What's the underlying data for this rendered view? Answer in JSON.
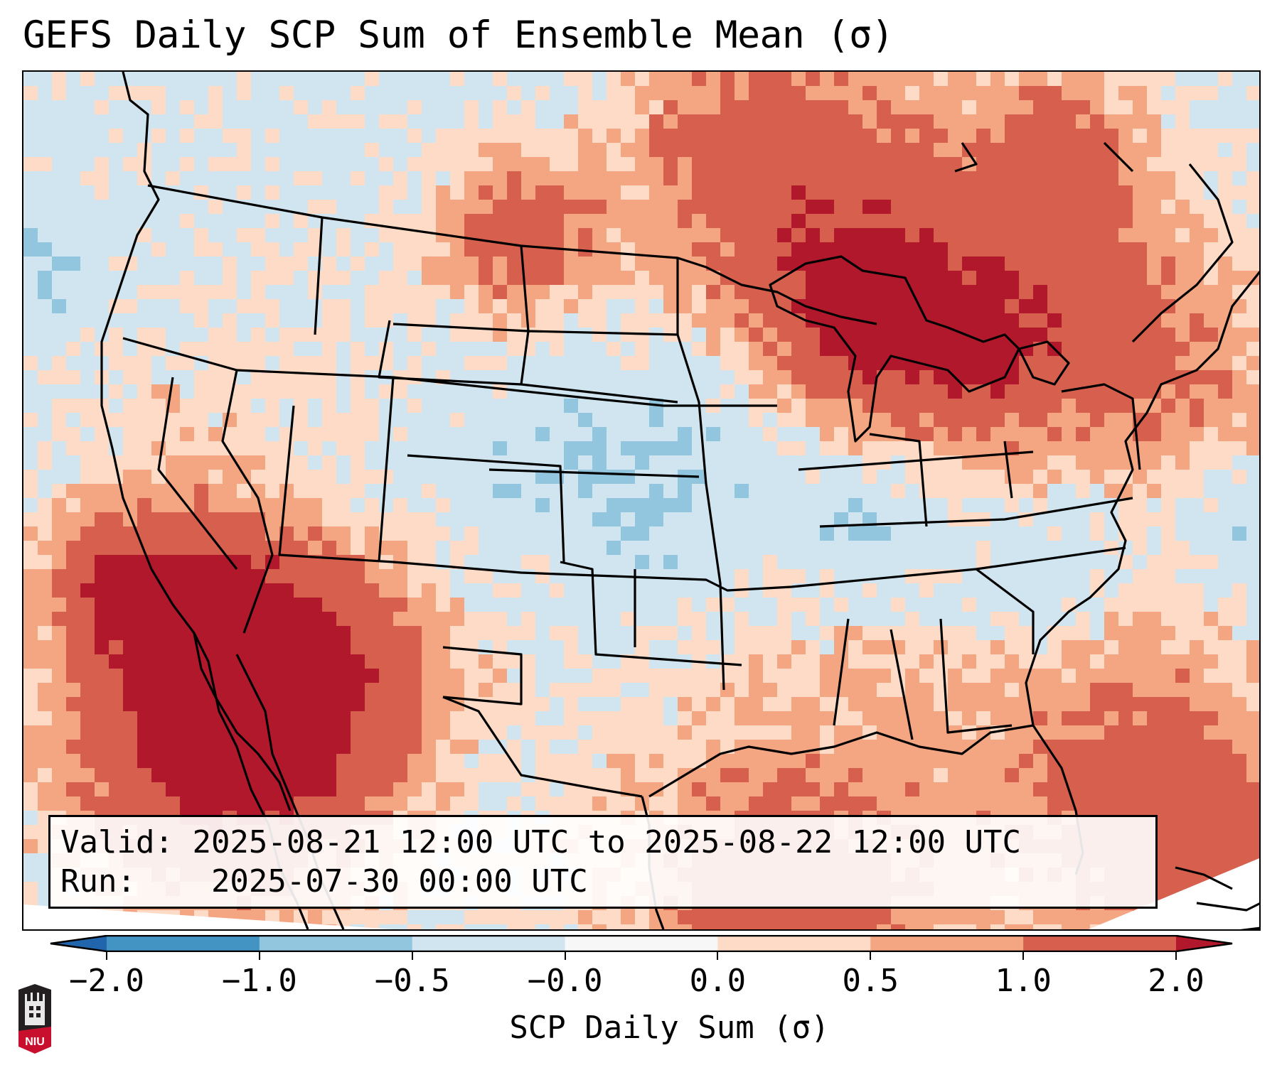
{
  "title": "GEFS Daily SCP Sum of Ensemble Mean (σ)",
  "info_box": {
    "valid_label": "Valid:",
    "valid_value": "2025-08-21 12:00 UTC to 2025-08-22 12:00 UTC",
    "run_label": "Run:",
    "run_value": "2025-07-30 00:00 UTC"
  },
  "colorbar": {
    "label": "SCP Daily Sum (σ)",
    "ticks": [
      "−2.0",
      "−1.0",
      "−0.5",
      "−0.0",
      "0.0",
      "0.5",
      "1.0",
      "2.0"
    ],
    "levels": [
      -2.0,
      -1.0,
      -0.5,
      -0.0,
      0.0,
      0.5,
      1.0,
      2.0
    ],
    "colors": {
      "under": "#2166ac",
      "bins": [
        "#4393c3",
        "#92c5de",
        "#d1e5f0",
        "#f7f7f7",
        "#fddbc7",
        "#f4a582",
        "#d6604d"
      ],
      "over": "#b2182b"
    },
    "extend": "both"
  },
  "map": {
    "projection": "Lambert conformal (CONUS)",
    "background_color": "#d1e5f0",
    "border_color": "#000000",
    "features": [
      "coastlines",
      "country borders",
      "state borders",
      "lakes"
    ]
  },
  "logo": {
    "text": "NIU",
    "colors": {
      "top": "#231f20",
      "bottom": "#c8102e"
    }
  }
}
